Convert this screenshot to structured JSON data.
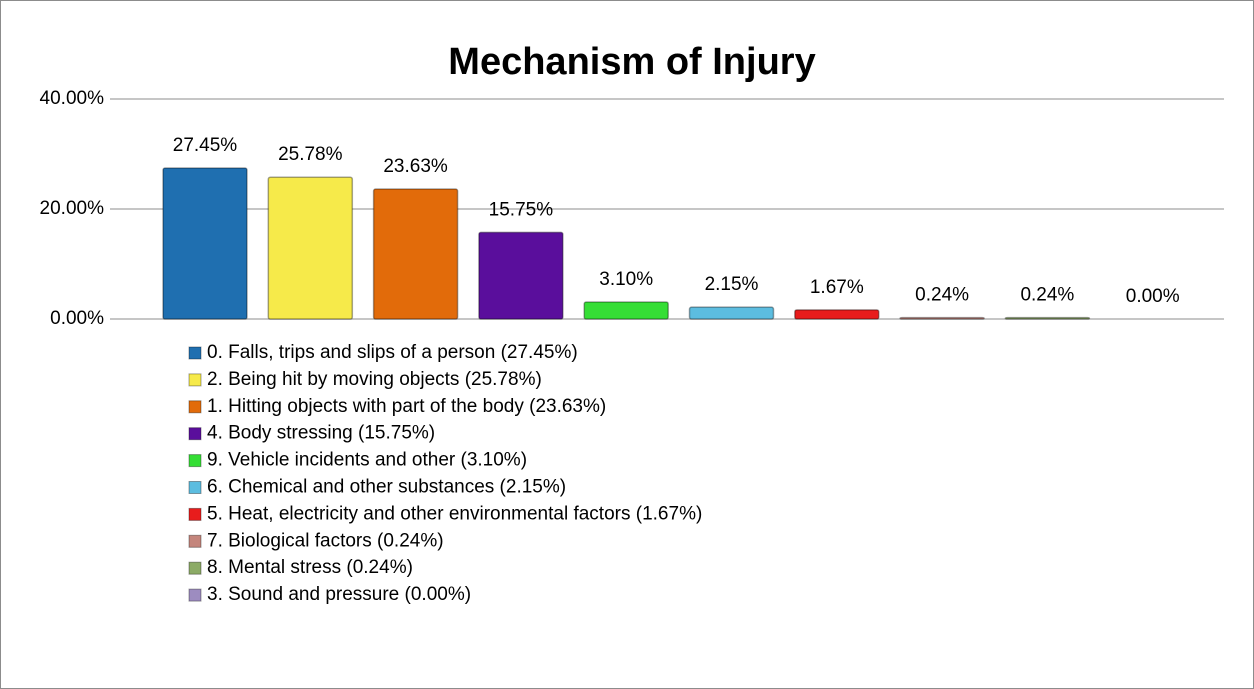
{
  "chart_data": {
    "type": "bar",
    "title": "Mechanism of Injury",
    "categories": [
      null
    ],
    "ylim": [
      0,
      40
    ],
    "yticks": [
      {
        "value": 0,
        "label": "0.00%"
      },
      {
        "value": 20,
        "label": "20.00%"
      },
      {
        "value": 40,
        "label": "40.00%"
      }
    ],
    "grid": true,
    "legend": "bottom",
    "series": [
      {
        "name": "0. Falls, trips and slips of a person (27.45%)",
        "color": "#1f6fb0",
        "values": [
          27.45
        ],
        "value_labels": [
          "27.45%"
        ]
      },
      {
        "name": "2. Being hit by moving objects (25.78%)",
        "color": "#f6ea4a",
        "values": [
          25.78
        ],
        "value_labels": [
          "25.78%"
        ]
      },
      {
        "name": "1. Hitting objects with part of the body (23.63%)",
        "color": "#e26b0a",
        "values": [
          23.63
        ],
        "value_labels": [
          "23.63%"
        ]
      },
      {
        "name": "4. Body stressing (15.75%)",
        "color": "#5a0e9c",
        "values": [
          15.75
        ],
        "value_labels": [
          "15.75%"
        ]
      },
      {
        "name": "9. Vehicle incidents and other (3.10%)",
        "color": "#35de35",
        "values": [
          3.1
        ],
        "value_labels": [
          "3.10%"
        ]
      },
      {
        "name": "6. Chemical and other substances (2.15%)",
        "color": "#5cbde0",
        "values": [
          2.15
        ],
        "value_labels": [
          "2.15%"
        ]
      },
      {
        "name": "5. Heat, electricity and other environmental factors (1.67%)",
        "color": "#e81c1c",
        "values": [
          1.67
        ],
        "value_labels": [
          "1.67%"
        ]
      },
      {
        "name": "7. Biological factors (0.24%)",
        "color": "#c4857c",
        "values": [
          0.24
        ],
        "value_labels": [
          "0.24%"
        ]
      },
      {
        "name": "8. Mental stress (0.24%)",
        "color": "#8cab66",
        "values": [
          0.24
        ],
        "value_labels": [
          "0.24%"
        ]
      },
      {
        "name": "3. Sound and pressure (0.00%)",
        "color": "#9d8cc0",
        "values": [
          0
        ],
        "value_labels": [
          "0.00%"
        ]
      }
    ]
  }
}
